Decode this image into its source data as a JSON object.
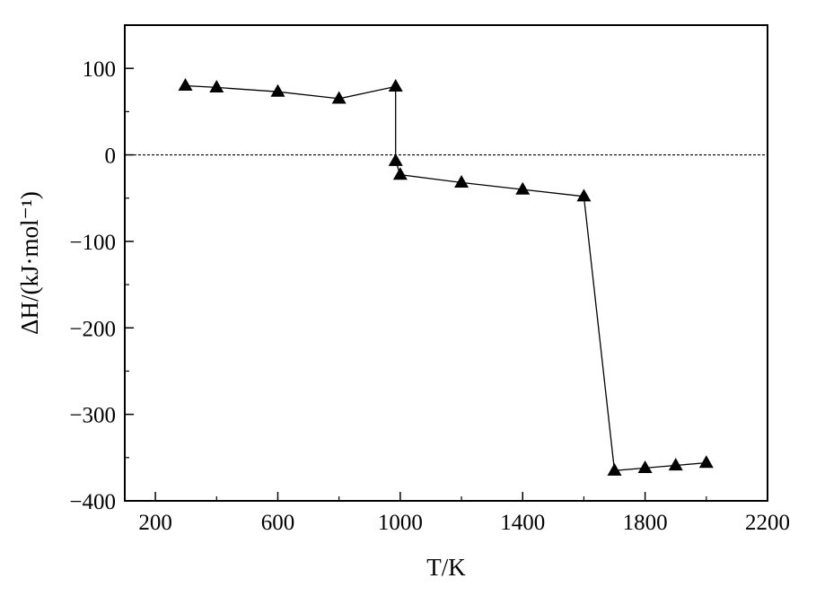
{
  "chart_data": {
    "type": "line",
    "xlabel": "T/K",
    "ylabel": "ΔH/(kJ·mol⁻¹)",
    "xlim": [
      100,
      2200
    ],
    "ylim": [
      -400,
      150
    ],
    "xticks": [
      200,
      600,
      1000,
      1400,
      1800,
      2200
    ],
    "yticks": [
      100,
      0,
      -100,
      -200,
      -300,
      -400
    ],
    "x_tick_labels": [
      "200",
      "600",
      "1000",
      "1400",
      "1800",
      "2200"
    ],
    "y_tick_labels": [
      "100",
      "0",
      "−100",
      "−200",
      "−300",
      "−400"
    ],
    "grid": false,
    "reference_line": {
      "y": 0,
      "style": "dashed"
    },
    "marker": "triangle",
    "series": [
      {
        "x": [
          298,
          400,
          600,
          800,
          985,
          985,
          1000,
          1200,
          1400,
          1600,
          1700,
          1800,
          1900,
          2000
        ],
        "y": [
          80,
          78,
          73,
          65,
          79,
          -7,
          -23,
          -32,
          -40,
          -48,
          -365,
          -362,
          -359,
          -356
        ]
      }
    ]
  }
}
